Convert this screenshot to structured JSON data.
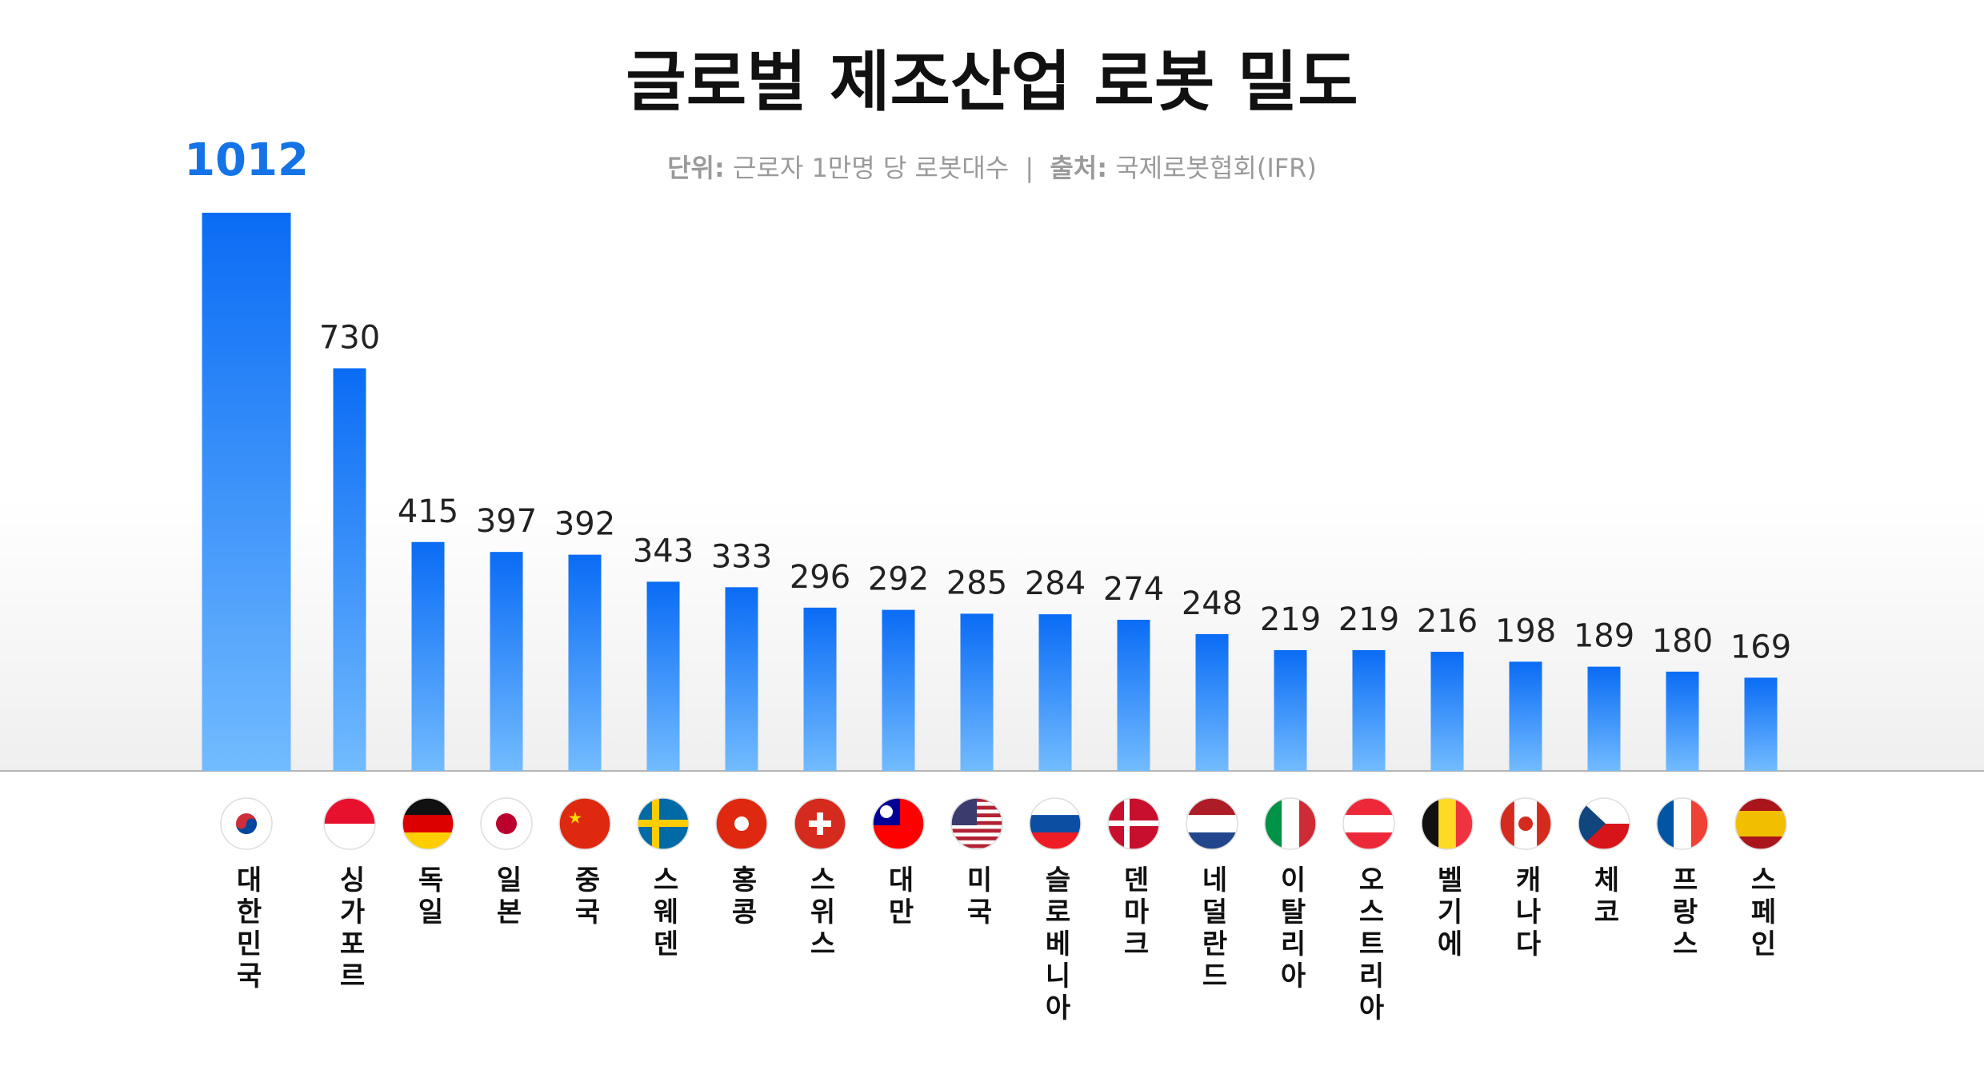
{
  "chart_data": {
    "type": "bar",
    "title": "글로벌 제조산업 로봇 밀도",
    "subtitle": {
      "unit_label": "단위:",
      "unit": "근로자 1만명 당 로봇대수",
      "separator": "|",
      "source_label": "출처:",
      "source": "국제로봇협회(IFR)"
    },
    "categories": [
      "대한민국",
      "싱가포르",
      "독일",
      "일본",
      "중국",
      "스웨덴",
      "홍콩",
      "스위스",
      "대만",
      "미국",
      "슬로베니아",
      "덴마크",
      "네덜란드",
      "이탈리아",
      "오스트리아",
      "벨기에",
      "캐나다",
      "체코",
      "프랑스",
      "스페인"
    ],
    "values": [
      1012,
      730,
      415,
      397,
      392,
      343,
      333,
      296,
      292,
      285,
      284,
      274,
      248,
      219,
      219,
      216,
      198,
      189,
      180,
      169
    ],
    "color": "#0a6cf5",
    "ylim": [
      0,
      1012
    ]
  }
}
